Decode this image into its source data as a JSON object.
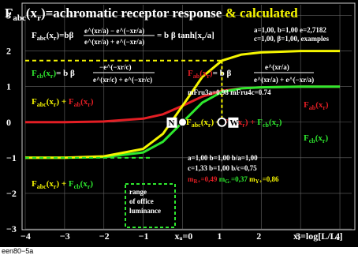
{
  "title_main": "F",
  "title_sub": "abc",
  "title_rest": "(x",
  "title_r": "r",
  "title_tail": ")=achromatic receptor response",
  "title_amp": "& calculated",
  "params_top1": "a=1,00, b=1,00 e=2,7182",
  "params_top2": "c=1,00, β=1,00, examples",
  "mfru": "mFru3a=0.98  mFru4c=0.74",
  "params_bot1": "a=1,00 b=1,00 b/a=1,00",
  "params_bot2": "c=1,33 b=1,00 b/c=0,75",
  "m_r": "m",
  "m_r_sub": "R+",
  "m_r_val": "=0,49",
  "m_g_val": "m",
  "m_g_sub": "G-",
  "m_g_num": "=0,37",
  "m_y": "m",
  "m_y_sub": "Y+",
  "m_y_num": "=0,86",
  "range1": "range",
  "range2": "of office",
  "range3": "luminance",
  "label_N": "N",
  "label_W": "W",
  "footer": "een80−5a",
  "colors": {
    "red": "#e31e24",
    "green": "#2ee82e",
    "yellow": "#f5f500",
    "bg": "#000000",
    "grid": "#888888"
  },
  "chart_data": {
    "type": "line",
    "xlabel": "x_r=log[L/L_u]",
    "xlim": [
      -4,
      4.3
    ],
    "ylim": [
      -3,
      3.3
    ],
    "xticks": [
      "-4",
      "-3",
      "-2",
      "-1",
      "x_u=0",
      "1",
      "2",
      "3",
      "4"
    ],
    "yticks": [
      "3",
      "2",
      "1",
      "0",
      "-1",
      "-2",
      "-3"
    ],
    "series": [
      {
        "name": "F_ab(x_r)",
        "color": "red",
        "x": [
          -4,
          -3,
          -2,
          -1,
          -0.5,
          0,
          0.5,
          1,
          1.5,
          2,
          3,
          4
        ],
        "y": [
          0,
          0,
          0.02,
          0.1,
          0.22,
          0.46,
          0.72,
          0.88,
          0.95,
          0.98,
          1,
          1
        ]
      },
      {
        "name": "F_cb(x_r)",
        "color": "green",
        "x": [
          -4,
          -3,
          -2,
          -1,
          -0.5,
          0,
          0.5,
          1,
          1.5,
          2,
          3,
          4
        ],
        "y": [
          -1,
          -1,
          -0.98,
          -0.85,
          -0.55,
          0,
          0.55,
          0.85,
          0.95,
          0.98,
          1,
          1
        ]
      },
      {
        "name": "F_abc(x_r)=F_ab+F_cb",
        "color": "yellow",
        "x": [
          -4,
          -3,
          -2,
          -1,
          -0.5,
          0,
          0.5,
          1,
          1.5,
          2,
          3,
          4
        ],
        "y": [
          -1,
          -1,
          -0.96,
          -0.75,
          -0.33,
          0.46,
          1.27,
          1.73,
          1.9,
          1.96,
          2,
          2
        ]
      }
    ]
  }
}
